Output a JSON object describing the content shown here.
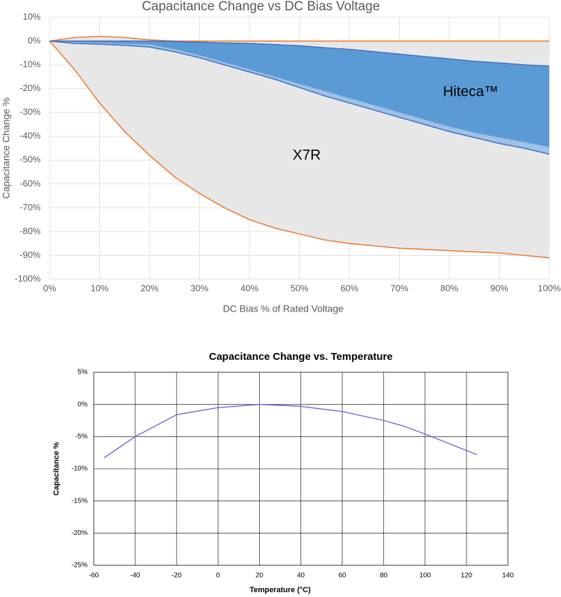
{
  "chart_data": [
    {
      "type": "band",
      "title": "Capacitance Change vs DC Bias Voltage",
      "x_label": "DC Bias % of Rated Voltage",
      "y_label": "Capacitance Change %",
      "x": [
        0,
        5,
        10,
        15,
        20,
        25,
        30,
        35,
        40,
        45,
        50,
        55,
        60,
        65,
        70,
        75,
        80,
        85,
        90,
        95,
        100
      ],
      "series": [
        {
          "name": "X7R",
          "color": "#ed7d31",
          "fill": "#e7e7e7",
          "upper": [
            0,
            1.5,
            2,
            1.5,
            0.5,
            0,
            0,
            0,
            0,
            0,
            0,
            0,
            0,
            0,
            0,
            0,
            0,
            0,
            0,
            0,
            0
          ],
          "lower": [
            0,
            -12,
            -26,
            -38,
            -48,
            -57,
            -64,
            -70,
            -75,
            -78.5,
            -81,
            -83.5,
            -85,
            -86,
            -87,
            -87.5,
            -88,
            -88.5,
            -89,
            -90,
            -91
          ]
        },
        {
          "name": "Hiteca™",
          "color": "#4472c4",
          "fill": "#5b9bd5",
          "band_fill": "#9dc3e6",
          "upper": [
            0,
            0,
            0,
            0,
            0,
            -0.2,
            -0.5,
            -0.8,
            -1,
            -1.5,
            -2,
            -2.8,
            -3.5,
            -4.5,
            -5.5,
            -6.5,
            -7.5,
            -8.5,
            -9.2,
            -10,
            -10.5
          ],
          "inner": [
            0,
            -0.5,
            -0.8,
            -1.2,
            -1.5,
            -3.5,
            -6,
            -9,
            -12,
            -15,
            -18,
            -21,
            -24,
            -27,
            -30,
            -33,
            -36,
            -38.5,
            -40.5,
            -42.5,
            -44.5
          ],
          "lower": [
            0,
            -1,
            -1.3,
            -1.8,
            -2.5,
            -4.5,
            -7,
            -10,
            -13,
            -16,
            -19.5,
            -23,
            -26,
            -29,
            -32,
            -35,
            -38,
            -40.5,
            -43,
            -45,
            -47.5
          ]
        }
      ],
      "xlim": [
        0,
        100
      ],
      "xticks": [
        {
          "value": 0,
          "label": "0%"
        },
        {
          "value": 10,
          "label": "10%"
        },
        {
          "value": 20,
          "label": "20%"
        },
        {
          "value": 30,
          "label": "30%"
        },
        {
          "value": 40,
          "label": "40%"
        },
        {
          "value": 50,
          "label": "50%"
        },
        {
          "value": 60,
          "label": "60%"
        },
        {
          "value": 70,
          "label": "70%"
        },
        {
          "value": 80,
          "label": "80%"
        },
        {
          "value": 90,
          "label": "90%"
        },
        {
          "value": 100,
          "label": "100%"
        }
      ],
      "ylim": [
        -100,
        10
      ],
      "yticks": [
        {
          "value": 10,
          "label": "10%"
        },
        {
          "value": 0,
          "label": "0%"
        },
        {
          "value": -10,
          "label": "-10%"
        },
        {
          "value": -20,
          "label": "-20%"
        },
        {
          "value": -30,
          "label": "-30%"
        },
        {
          "value": -40,
          "label": "-40%"
        },
        {
          "value": -50,
          "label": "-50%"
        },
        {
          "value": -60,
          "label": "-60%"
        },
        {
          "value": -70,
          "label": "-70%"
        },
        {
          "value": -80,
          "label": "-80%"
        },
        {
          "value": -90,
          "label": "-90%"
        },
        {
          "value": -100,
          "label": "-100%"
        }
      ],
      "grid": true
    },
    {
      "type": "line",
      "title": "Capacitance Change vs. Temperature",
      "x_label": "Temperature (°C)",
      "y_label": "Capacitance %",
      "x": [
        -55,
        -40,
        -20,
        0,
        20,
        40,
        60,
        80,
        90,
        100,
        125
      ],
      "series": [
        {
          "color": "#6666dd",
          "values": [
            -8.3,
            -5,
            -1.6,
            -0.5,
            0,
            -0.3,
            -1.1,
            -2.5,
            -3.4,
            -4.6,
            -7.8
          ]
        }
      ],
      "xlim": [
        -60,
        140
      ],
      "xticks": [
        -60,
        -40,
        -20,
        0,
        20,
        40,
        60,
        80,
        100,
        120,
        140
      ],
      "ylim": [
        -25,
        5
      ],
      "yticks": [
        {
          "value": 5,
          "label": "5%"
        },
        {
          "value": 0,
          "label": "0%"
        },
        {
          "value": -5,
          "label": "-5%"
        },
        {
          "value": -10,
          "label": "-10%"
        },
        {
          "value": -15,
          "label": "-15%"
        },
        {
          "value": -20,
          "label": "-20%"
        },
        {
          "value": -25,
          "label": "-25%"
        }
      ],
      "grid": true
    }
  ]
}
